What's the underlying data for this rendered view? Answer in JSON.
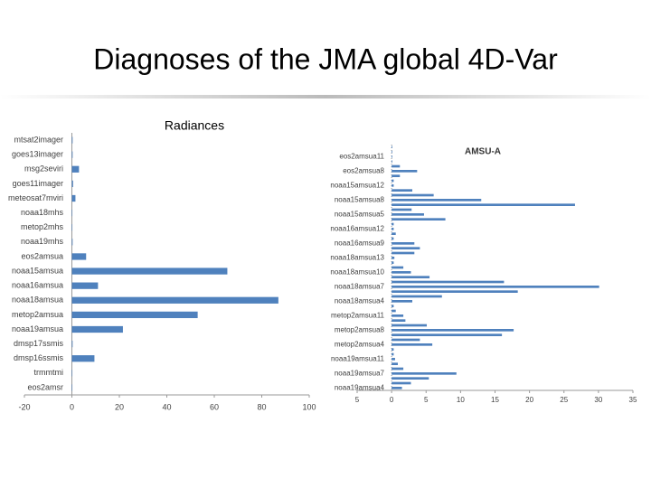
{
  "title": "Diagnoses of the JMA global 4D-Var",
  "chart_data": [
    {
      "type": "hbar",
      "title": "Radiances",
      "color": "#4f81bd",
      "categories": [
        "mtsat2imager",
        "goes13imager",
        "msg2seviri",
        "goes11imager",
        "meteosat7mviri",
        "noaa18mhs",
        "metop2mhs",
        "noaa19mhs",
        "eos2amsua",
        "noaa15amsua",
        "noaa16amsua",
        "noaa18amsua",
        "metop2amsua",
        "noaa19amsua",
        "dmsp17ssmis",
        "dmsp16ssmis",
        "trmmtmi",
        "eos2amsr"
      ],
      "values": [
        0.3,
        0.3,
        3,
        0.5,
        1.5,
        0.2,
        0.2,
        0.3,
        6,
        65.5,
        11,
        87,
        53,
        21.5,
        0.3,
        9.5,
        0.2,
        0.2
      ],
      "xlim": [
        -20,
        100
      ],
      "xticks": [
        -20,
        0,
        20,
        40,
        60,
        80,
        100
      ]
    },
    {
      "type": "hbar",
      "title": "AMSU-A",
      "color": "#4f81bd",
      "categories": [
        null,
        null,
        "eos2amsua11",
        null,
        null,
        "eos2amsua8",
        null,
        null,
        "noaa15amsua12",
        null,
        null,
        "noaa15amsua8",
        null,
        null,
        "noaa15amsua5",
        null,
        null,
        "noaa16amsua12",
        null,
        null,
        "noaa16amsua9",
        null,
        null,
        "noaa18amsua13",
        null,
        null,
        "noaa18amsua10",
        null,
        null,
        "noaa18amsua7",
        null,
        null,
        "noaa18amsua4",
        null,
        null,
        "metop2amsua11",
        null,
        null,
        "metop2amsua8",
        null,
        null,
        "metop2amsua4",
        null,
        null,
        "noaa19amsua11",
        null,
        null,
        "noaa19amsua7",
        null,
        null,
        "noaa19amsua4"
      ],
      "values": [
        0.1,
        0.1,
        0.1,
        0.1,
        1.2,
        3.7,
        1.2,
        0.3,
        0.3,
        3,
        6.1,
        13,
        26.6,
        2.9,
        4.7,
        7.8,
        0.3,
        0.3,
        0.6,
        0.3,
        3.3,
        4.1,
        3.3,
        0.4,
        0.3,
        1.7,
        2.8,
        5.5,
        16.3,
        30.1,
        18.3,
        7.3,
        3,
        0.3,
        0.6,
        1.7,
        2,
        5.1,
        17.7,
        16,
        4.1,
        5.9,
        0.3,
        0.3,
        0.5,
        0.9,
        1.7,
        9.4,
        5.4,
        2.8,
        1.5
      ],
      "xlim": [
        -5,
        35
      ],
      "xticks": [
        {
          "value": -5,
          "label": "5"
        },
        0,
        5,
        10,
        15,
        20,
        25,
        30,
        35
      ]
    }
  ]
}
